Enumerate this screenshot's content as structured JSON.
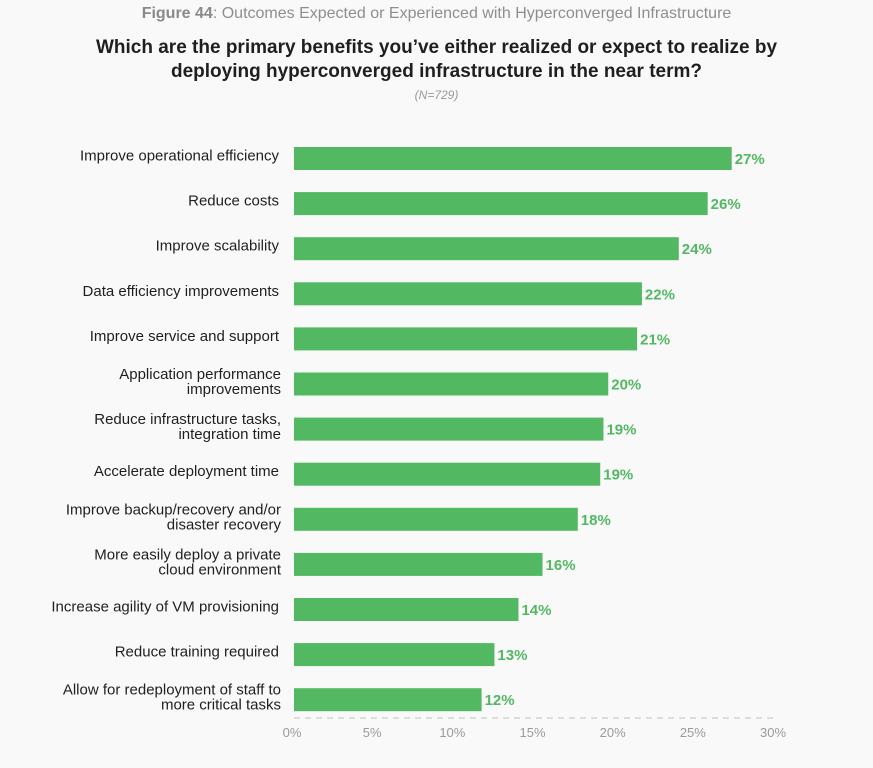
{
  "header": {
    "figure_label": "Figure 44",
    "figure_title": ": Outcomes Expected or Experienced with Hyperconverged Infrastructure",
    "question": "Which are the primary benefits you’ve either realized or expect to realize by deploying hyperconverged infrastructure in the near term?",
    "sample": "(N=729)"
  },
  "chart_data": {
    "type": "bar",
    "orientation": "horizontal",
    "title": "Figure 44: Outcomes Expected or Experienced with Hyperconverged Infrastructure",
    "subtitle": "Which are the primary benefits you’ve either realized or expect to realize by deploying hyperconverged infrastructure in the near term? (N=729)",
    "xlabel": "",
    "ylabel": "",
    "xlim": [
      0,
      30
    ],
    "x_ticks": [
      "0%",
      "5%",
      "10%",
      "15%",
      "20%",
      "25%",
      "30%"
    ],
    "x_tick_values": [
      0,
      5,
      10,
      15,
      20,
      25,
      30
    ],
    "grid": false,
    "legend": "none",
    "bar_color": "#52b862",
    "categories": [
      [
        "Improve operational efficiency"
      ],
      [
        "Reduce costs"
      ],
      [
        "Improve scalability"
      ],
      [
        "Data efficiency improvements"
      ],
      [
        "Improve service and support"
      ],
      [
        "Application performance",
        "improvements"
      ],
      [
        "Reduce infrastructure tasks,",
        "integration time"
      ],
      [
        "Accelerate deployment time"
      ],
      [
        "Improve backup/recovery and/or",
        "disaster recovery"
      ],
      [
        "More easily deploy a private",
        "cloud environment"
      ],
      [
        "Increase agility of VM provisioning"
      ],
      [
        "Reduce training required"
      ],
      [
        "Allow for redeployment of staff to",
        "more critical tasks"
      ]
    ],
    "values": [
      27.3,
      25.8,
      24.0,
      21.7,
      21.4,
      19.6,
      19.3,
      19.1,
      17.7,
      15.5,
      14.0,
      12.5,
      11.7
    ],
    "value_labels": [
      "27%",
      "26%",
      "24%",
      "22%",
      "21%",
      "20%",
      "19%",
      "19%",
      "18%",
      "16%",
      "14%",
      "13%",
      "12%"
    ]
  }
}
